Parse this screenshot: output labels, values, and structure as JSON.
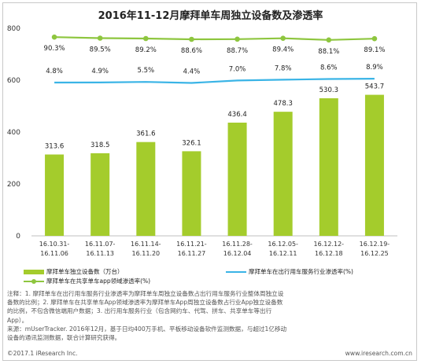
{
  "chart_data": {
    "type": "bar",
    "title": "2016年11-12月摩拜单车周独立设备数及渗透率",
    "categories": [
      [
        "16.10.31-",
        "16.11.06"
      ],
      [
        "16.11.07-",
        "16.11.13"
      ],
      [
        "16.11.14-",
        "16.11.20"
      ],
      [
        "16.11.21-",
        "16.11.27"
      ],
      [
        "16.11.28-",
        "16.12.04"
      ],
      [
        "16.12.05-",
        "16.12.11"
      ],
      [
        "16.12.12-",
        "16.12.18"
      ],
      [
        "16.12.19-",
        "16.12.25"
      ]
    ],
    "ylim": [
      0,
      800
    ],
    "yticks": [
      0,
      200,
      400,
      600,
      800
    ],
    "grid": false,
    "legend_position": "bottom",
    "series": [
      {
        "name": "摩拜单车独立设备数（万台）",
        "type": "bar",
        "color": "#a4cc2c",
        "values": [
          313.6,
          318.5,
          361.6,
          326.1,
          436.4,
          478.3,
          530.3,
          543.7
        ],
        "labels": [
          "313.6",
          "318.5",
          "361.6",
          "326.1",
          "436.4",
          "478.3",
          "530.3",
          "543.7"
        ]
      },
      {
        "name": "摩拜单车在出行用车服务行业渗透率(%)",
        "type": "line",
        "color": "#3ab4e6",
        "values": [
          4.8,
          4.9,
          5.5,
          4.4,
          7.0,
          7.8,
          8.6,
          8.9
        ],
        "labels": [
          "4.8%",
          "4.9%",
          "5.5%",
          "4.4%",
          "7.0%",
          "7.8%",
          "8.6%",
          "8.9%"
        ]
      },
      {
        "name": "摩拜单车在共享单车app领域渗透率(%)",
        "type": "line",
        "color": "#8ec63f",
        "values": [
          90.3,
          89.5,
          89.2,
          88.6,
          88.7,
          89.4,
          88.1,
          89.1
        ],
        "labels": [
          "90.3%",
          "89.5%",
          "89.2%",
          "88.6%",
          "88.7%",
          "89.4%",
          "88.1%",
          "89.1%"
        ]
      }
    ]
  },
  "notes": [
    "注释：1. 摩拜单车在出行用车服务行业渗透率为摩拜单车周独立设备数占出行用车服务行业整体周独立设",
    "备数的比例；2. 摩拜单车在共享单车App领域渗透率为摩拜单车App周独立设备数占行业App独立设备数",
    "的比例，不包含微信端用户数据；3. 出行用车服务行业（包含网约车、代驾、拼车、共享单车等出行",
    "App）。",
    "来源：mUserTracker. 2016年12月，基于日均400万手机、平板移动设备软件监测数据，与超过1亿移动",
    "设备的通讯监测数据，联合计算研究获得。"
  ],
  "footer": {
    "copyright": "©2017.1  iResearch Inc.",
    "website": "www.iresearch.com.cn"
  }
}
